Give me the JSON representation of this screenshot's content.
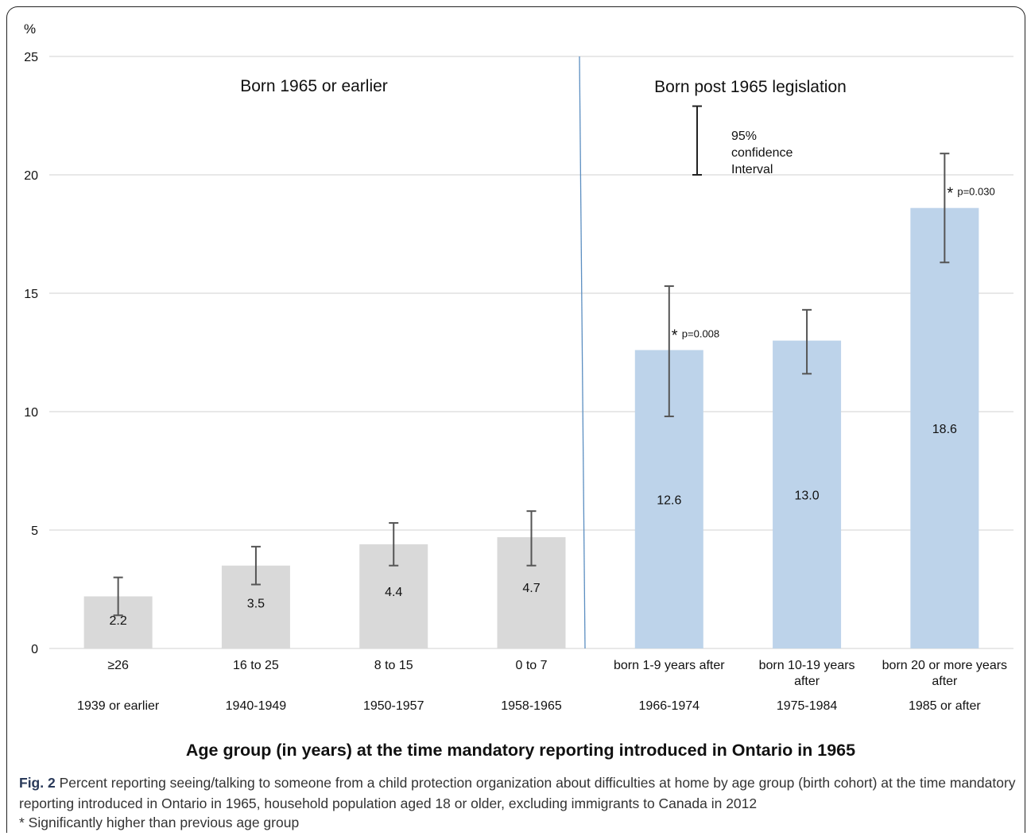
{
  "chart_data": {
    "type": "bar",
    "yunit": "%",
    "ylim": [
      0,
      25
    ],
    "yticks": [
      0,
      5,
      10,
      15,
      20,
      25
    ],
    "grid": true,
    "categories": [
      "≥26",
      "16 to 25",
      "8 to 15",
      "0 to 7",
      "born 1-9 years after",
      "born 10-19 years after",
      "born 20 or more years after"
    ],
    "category_lines": [
      [
        "≥26"
      ],
      [
        "16 to 25"
      ],
      [
        "8 to 15"
      ],
      [
        "0 to 7"
      ],
      [
        "born 1-9 years after"
      ],
      [
        "born 10-19 years",
        "after"
      ],
      [
        "born 20 or more years",
        "after"
      ]
    ],
    "cohorts": [
      "1939 or earlier",
      "1940-1949",
      "1950-1957",
      "1958-1965",
      "1966-1974",
      "1975-1984",
      "1985 or after"
    ],
    "values": [
      2.2,
      3.5,
      4.4,
      4.7,
      12.6,
      13.0,
      18.6
    ],
    "value_labels": [
      "2.2",
      "3.5",
      "4.4",
      "4.7",
      "12.6",
      "13.0",
      "18.6"
    ],
    "ci_low": [
      1.4,
      2.7,
      3.5,
      3.5,
      9.8,
      11.6,
      16.3
    ],
    "ci_high": [
      3.0,
      4.3,
      5.3,
      5.8,
      15.3,
      14.3,
      20.9
    ],
    "significance": [
      null,
      null,
      null,
      null,
      "p=0.008",
      null,
      "p=0.030"
    ],
    "significance_marker": "*",
    "colors": {
      "before": "#d9d9d9",
      "after": "#bdd3ea",
      "divider": "#5b8ec1",
      "errorbar": "#555555",
      "grid": "#d9d9d9"
    },
    "groups": {
      "before_label": "Born 1965 or earlier",
      "after_label": "Born post 1965 legislation"
    },
    "legend": {
      "ci_label_lines": [
        "95%",
        "confidence",
        "Interval"
      ]
    },
    "xlabel": "Age group (in years) at the time mandatory reporting introduced in Ontario in 1965"
  },
  "caption": {
    "fig_label": "Fig. 2",
    "text": " Percent reporting seeing/talking to someone from a child protection organization about difficulties at home by age group (birth cohort) at the time mandatory reporting introduced in Ontario in 1965, household population aged 18 or older, excluding immigrants to Canada in 2012",
    "note": "* Significantly higher than previous age group"
  }
}
